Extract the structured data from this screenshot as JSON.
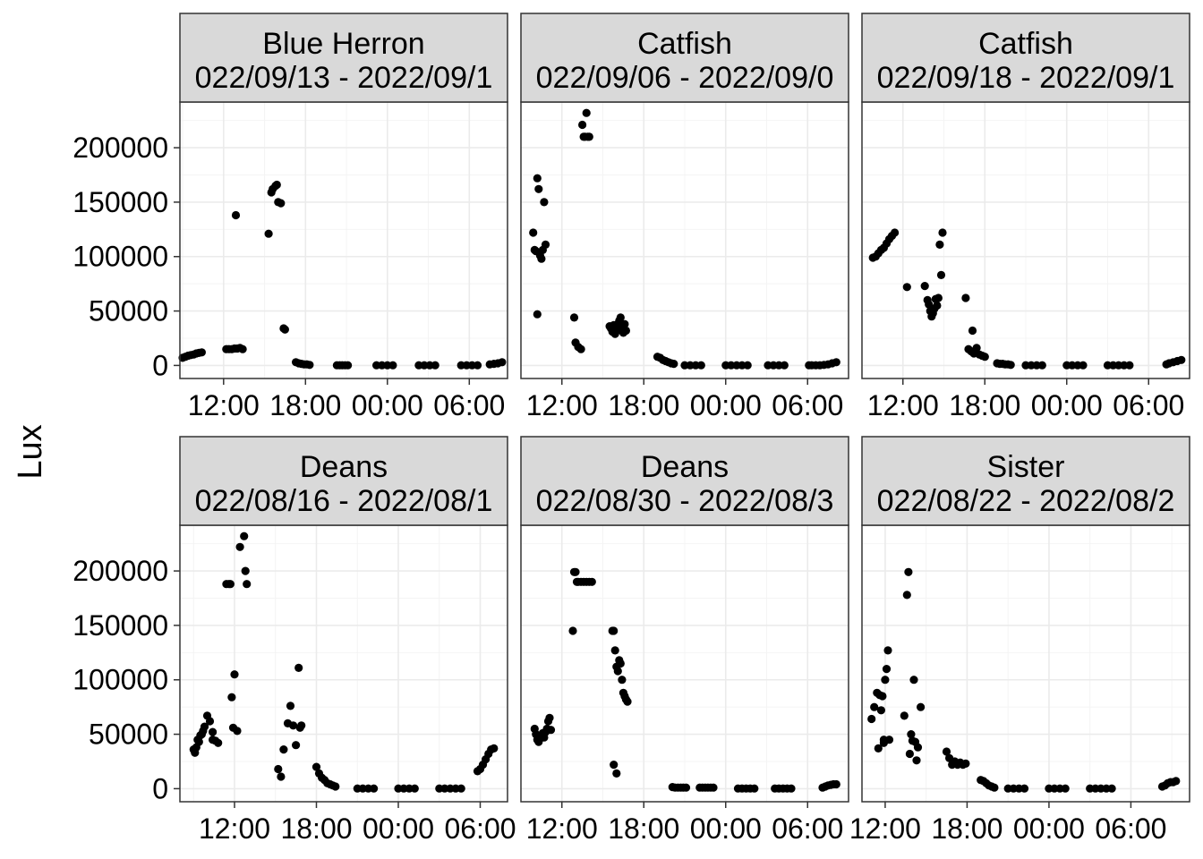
{
  "chart_data": {
    "type": "scatter",
    "ylabel": "Lux",
    "xlabel": "",
    "ylim": [
      -12000,
      242000
    ],
    "y_ticks": [
      0,
      50000,
      100000,
      150000,
      200000
    ],
    "y_tick_labels": [
      "0",
      "50000",
      "100000",
      "150000",
      "200000"
    ],
    "grid": true,
    "legend": "none",
    "colors": {
      "point": "#000000",
      "strip": "#d9d9d9",
      "grid_major": "#ebebeb",
      "grid_minor": "#f4f4f4",
      "panel_border": "#333333"
    },
    "panels": [
      {
        "title_line1": "Blue Herron",
        "title_line2": "022/09/13 - 2022/09/1",
        "xlim": [
          8.8,
          32.8
        ],
        "x_ticks": [
          12,
          18,
          24,
          30
        ],
        "x_tick_labels": [
          "12:00",
          "18:00",
          "00:00",
          "06:00"
        ],
        "x": [
          9.0,
          9.2,
          9.4,
          9.6,
          9.8,
          10.0,
          10.2,
          10.4,
          12.2,
          12.4,
          12.6,
          12.8,
          13.0,
          13.2,
          13.4,
          12.9,
          15.3,
          15.5,
          15.6,
          15.8,
          15.9,
          16.0,
          16.2,
          16.4,
          16.5,
          17.3,
          17.5,
          17.7,
          17.9,
          18.1,
          18.3,
          20.3,
          20.5,
          20.7,
          20.9,
          21.1,
          23.2,
          23.6,
          24.0,
          24.4,
          26.3,
          26.7,
          27.1,
          27.5,
          29.4,
          29.8,
          30.2,
          30.6,
          31.5,
          31.8,
          32.1,
          32.4
        ],
        "y": [
          7000,
          8000,
          9000,
          9500,
          10000,
          11000,
          11500,
          12000,
          15000,
          15000,
          15000,
          15500,
          15500,
          16000,
          15000,
          138000,
          121000,
          159000,
          162000,
          165000,
          166000,
          150000,
          149000,
          34000,
          33000,
          3000,
          2000,
          1500,
          1000,
          1000,
          500,
          200,
          200,
          200,
          200,
          200,
          200,
          200,
          200,
          200,
          200,
          200,
          200,
          200,
          200,
          200,
          200,
          200,
          1000,
          1500,
          2000,
          3000
        ]
      },
      {
        "title_line1": "Catfish",
        "title_line2": "022/09/06 - 2022/09/0",
        "xlim": [
          9.0,
          33.0
        ],
        "x_ticks": [
          12,
          18,
          24,
          30
        ],
        "x_tick_labels": [
          "12:00",
          "18:00",
          "00:00",
          "06:00"
        ],
        "x": [
          9.9,
          10.0,
          10.1,
          10.2,
          10.3,
          10.4,
          10.5,
          10.6,
          10.7,
          10.8,
          10.2,
          12.9,
          13.0,
          13.2,
          13.4,
          13.5,
          13.6,
          13.7,
          13.8,
          13.9,
          14.0,
          15.5,
          15.6,
          15.7,
          15.8,
          15.9,
          16.0,
          16.1,
          16.2,
          16.3,
          16.4,
          16.5,
          16.6,
          16.7,
          19.0,
          19.2,
          19.4,
          19.6,
          19.8,
          20.0,
          20.2,
          21.0,
          21.4,
          21.8,
          22.2,
          24.0,
          24.4,
          24.8,
          25.2,
          25.6,
          27.1,
          27.5,
          27.9,
          28.3,
          30.1,
          30.3,
          30.6,
          30.9,
          31.2,
          31.5,
          31.8,
          32.1
        ],
        "y": [
          122000,
          106000,
          105000,
          172000,
          162000,
          101000,
          98000,
          106000,
          150000,
          111000,
          47000,
          44000,
          21000,
          17000,
          15000,
          221000,
          210000,
          210000,
          232000,
          210000,
          210000,
          36000,
          34000,
          31000,
          37000,
          29000,
          32000,
          38000,
          41000,
          44000,
          35000,
          30000,
          38000,
          32000,
          8000,
          7000,
          5000,
          4000,
          3000,
          2000,
          1500,
          200,
          200,
          200,
          200,
          200,
          200,
          200,
          200,
          200,
          200,
          200,
          200,
          200,
          200,
          200,
          200,
          200,
          500,
          1000,
          2000,
          3000
        ]
      },
      {
        "title_line1": "Catfish",
        "title_line2": "022/09/18 - 2022/09/1",
        "xlim": [
          9.0,
          33.0
        ],
        "x_ticks": [
          12,
          18,
          24,
          30
        ],
        "x_tick_labels": [
          "12:00",
          "18:00",
          "00:00",
          "06:00"
        ],
        "x": [
          9.8,
          10.0,
          10.2,
          10.4,
          10.6,
          10.8,
          11.0,
          11.2,
          11.4,
          12.3,
          13.6,
          13.8,
          13.9,
          14.0,
          14.1,
          14.2,
          14.3,
          14.4,
          14.5,
          14.6,
          14.7,
          14.8,
          14.9,
          16.6,
          16.8,
          17.0,
          17.2,
          17.4,
          17.6,
          17.8,
          18.0,
          17.1,
          18.9,
          19.1,
          19.3,
          19.5,
          19.7,
          19.9,
          21.0,
          21.4,
          21.8,
          22.2,
          24.0,
          24.4,
          24.8,
          25.2,
          27.0,
          27.4,
          27.8,
          28.2,
          28.6,
          31.3,
          31.5,
          31.8,
          32.1,
          32.4
        ],
        "y": [
          99000,
          100000,
          103000,
          106000,
          108000,
          112000,
          116000,
          119000,
          122000,
          72000,
          73000,
          60000,
          56000,
          50000,
          45000,
          48000,
          52000,
          61000,
          55000,
          62000,
          111000,
          83000,
          122000,
          62000,
          15000,
          13000,
          11000,
          16000,
          10000,
          9000,
          8000,
          32000,
          2000,
          1500,
          1500,
          1000,
          1000,
          500,
          200,
          200,
          200,
          200,
          200,
          200,
          200,
          200,
          200,
          200,
          200,
          200,
          200,
          1000,
          2000,
          3000,
          4000,
          5000
        ]
      },
      {
        "title_line1": "Deans",
        "title_line2": "022/08/16 - 2022/08/1",
        "xlim": [
          8.0,
          32.0
        ],
        "x_ticks": [
          12,
          18,
          24,
          30
        ],
        "x_tick_labels": [
          "12:00",
          "18:00",
          "00:00",
          "06:00"
        ],
        "x": [
          9.0,
          9.1,
          9.2,
          9.3,
          9.4,
          9.5,
          9.6,
          9.7,
          9.8,
          10.0,
          10.2,
          10.4,
          10.6,
          10.8,
          10.4,
          11.4,
          11.6,
          11.8,
          12.0,
          11.7,
          11.9,
          12.2,
          12.4,
          12.7,
          12.8,
          12.9,
          15.2,
          15.4,
          15.6,
          15.9,
          16.1,
          16.3,
          16.5,
          16.7,
          16.8,
          16.9,
          18.0,
          18.2,
          18.4,
          18.6,
          18.8,
          19.0,
          19.2,
          19.4,
          21.0,
          21.4,
          21.8,
          22.2,
          24.0,
          24.4,
          24.8,
          25.2,
          27.0,
          27.4,
          27.8,
          28.2,
          28.6,
          29.8,
          30.0,
          30.2,
          30.4,
          30.6,
          30.8,
          31.0
        ],
        "y": [
          36000,
          33000,
          38000,
          45000,
          43000,
          49000,
          50000,
          53000,
          57000,
          67000,
          62000,
          52000,
          44000,
          42000,
          45000,
          188000,
          188000,
          84000,
          105000,
          188000,
          56000,
          53000,
          222000,
          232000,
          200000,
          188000,
          18000,
          11000,
          36000,
          60000,
          76000,
          58000,
          40000,
          111000,
          56000,
          58000,
          20000,
          14000,
          10000,
          8000,
          5000,
          4000,
          3000,
          2000,
          200,
          200,
          200,
          200,
          200,
          200,
          200,
          200,
          200,
          200,
          200,
          200,
          200,
          16000,
          18000,
          22000,
          27000,
          32000,
          36000,
          37000
        ]
      },
      {
        "title_line1": "Deans",
        "title_line2": "022/08/30 - 2022/08/3",
        "xlim": [
          9.0,
          33.0
        ],
        "x_ticks": [
          12,
          18,
          24,
          30
        ],
        "x_tick_labels": [
          "12:00",
          "18:00",
          "00:00",
          "06:00"
        ],
        "x": [
          10.0,
          10.1,
          10.2,
          10.3,
          10.4,
          10.5,
          10.6,
          10.7,
          10.8,
          10.9,
          11.0,
          11.1,
          11.2,
          12.8,
          12.9,
          13.0,
          13.1,
          13.2,
          13.4,
          13.6,
          13.8,
          14.0,
          14.2,
          15.7,
          15.8,
          15.9,
          16.0,
          16.1,
          16.2,
          16.3,
          16.4,
          16.5,
          16.6,
          16.7,
          16.8,
          15.8,
          16.0,
          20.1,
          20.3,
          20.5,
          20.7,
          20.9,
          21.1,
          22.1,
          22.3,
          22.5,
          22.7,
          22.9,
          23.1,
          24.9,
          25.2,
          25.5,
          25.8,
          26.1,
          27.6,
          27.9,
          28.2,
          28.5,
          28.8,
          31.1,
          31.3,
          31.5,
          31.7,
          31.9,
          32.1
        ],
        "y": [
          55000,
          50000,
          45000,
          43000,
          46000,
          48000,
          51000,
          47000,
          52000,
          55000,
          62000,
          65000,
          54000,
          145000,
          199000,
          199000,
          190000,
          190000,
          190000,
          190000,
          190000,
          190000,
          190000,
          145000,
          145000,
          127000,
          112000,
          108000,
          118000,
          115000,
          100000,
          88000,
          85000,
          82000,
          80000,
          22000,
          14000,
          1500,
          1000,
          1000,
          1000,
          1000,
          1000,
          1000,
          1000,
          1000,
          1000,
          1000,
          1000,
          200,
          200,
          200,
          200,
          200,
          200,
          200,
          200,
          200,
          200,
          1000,
          2000,
          3000,
          3500,
          4000,
          4000
        ]
      },
      {
        "title_line1": "Sister",
        "title_line2": "022/08/22 - 2022/08/2",
        "xlim": [
          10.3,
          34.3
        ],
        "x_ticks": [
          12,
          18,
          24,
          30
        ],
        "x_tick_labels": [
          "12:00",
          "18:00",
          "00:00",
          "06:00"
        ],
        "x": [
          11.0,
          11.2,
          11.4,
          11.6,
          11.7,
          11.8,
          11.9,
          12.0,
          12.1,
          12.2,
          12.3,
          11.5,
          11.9,
          13.4,
          13.6,
          13.7,
          13.8,
          13.9,
          14.0,
          14.1,
          14.2,
          14.3,
          14.4,
          14.6,
          16.5,
          16.7,
          16.9,
          17.1,
          17.3,
          17.5,
          17.7,
          17.9,
          19.0,
          19.2,
          19.4,
          19.6,
          19.8,
          20.0,
          21.0,
          21.4,
          21.8,
          22.2,
          24.0,
          24.4,
          24.8,
          25.2,
          27.0,
          27.4,
          27.8,
          28.2,
          28.6,
          32.3,
          32.5,
          32.7,
          32.9,
          33.1,
          33.3
        ],
        "y": [
          64000,
          75000,
          88000,
          86000,
          72000,
          85000,
          45000,
          100000,
          110000,
          127000,
          45000,
          37000,
          42000,
          67000,
          178000,
          199000,
          32000,
          50000,
          44000,
          100000,
          43000,
          26000,
          38000,
          75000,
          34000,
          28000,
          22000,
          25000,
          22000,
          24000,
          22000,
          23000,
          8000,
          7000,
          5000,
          3000,
          2000,
          1000,
          200,
          200,
          200,
          200,
          200,
          200,
          200,
          200,
          200,
          200,
          200,
          200,
          200,
          2000,
          3000,
          5000,
          6000,
          6000,
          7000
        ]
      }
    ]
  }
}
